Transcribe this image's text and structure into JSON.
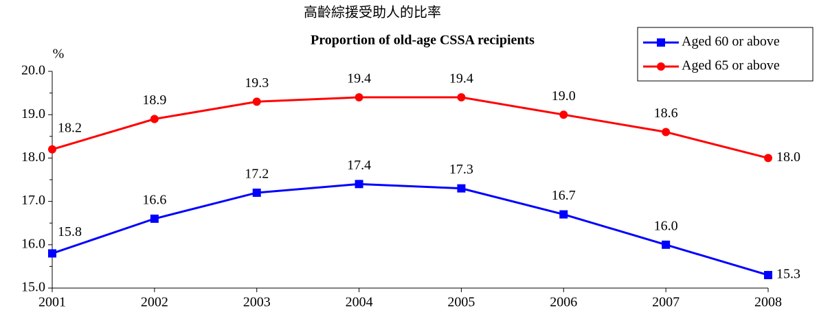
{
  "chart_data": {
    "type": "line",
    "title": "高齡綜援受助人的比率",
    "subtitle": "Proportion of old-age CSSA recipients",
    "y_label": "%",
    "x": [
      2001,
      2002,
      2003,
      2004,
      2005,
      2006,
      2007,
      2008
    ],
    "xlim": [
      2001,
      2008
    ],
    "xticks": [
      2001,
      2002,
      2003,
      2004,
      2005,
      2006,
      2007,
      2008
    ],
    "ylim": [
      15,
      20
    ],
    "yticks": [
      {
        "value": 15,
        "label": "15.0"
      },
      {
        "value": 16,
        "label": "16.0"
      },
      {
        "value": 17,
        "label": "17.0"
      },
      {
        "value": 18,
        "label": "18.0"
      },
      {
        "value": 19,
        "label": "19.0"
      },
      {
        "value": 20,
        "label": "20.0"
      }
    ],
    "legend": "top-right",
    "series": [
      {
        "name": "Aged 60 or above",
        "color": "#0000ff",
        "marker": "square",
        "values": [
          15.8,
          16.6,
          17.2,
          17.4,
          17.3,
          16.7,
          16.0,
          15.3
        ],
        "value_labels": [
          "15.8",
          "16.6",
          "17.2",
          "17.4",
          "17.3",
          "16.7",
          "16.0",
          "15.3"
        ]
      },
      {
        "name": "Aged 65 or above",
        "color": "#ff0000",
        "marker": "circle",
        "values": [
          18.2,
          18.9,
          19.3,
          19.4,
          19.4,
          19.0,
          18.6,
          18.0
        ],
        "value_labels": [
          "18.2",
          "18.9",
          "19.3",
          "19.4",
          "19.4",
          "19.0",
          "18.6",
          "18.0"
        ]
      }
    ]
  }
}
